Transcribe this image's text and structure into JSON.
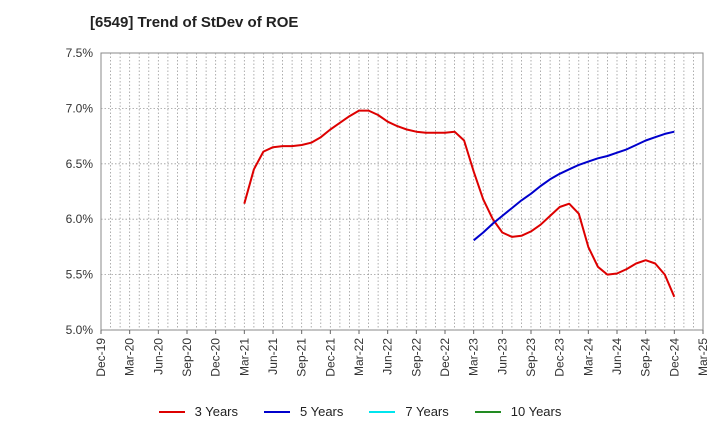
{
  "chart_data": {
    "type": "line",
    "title": "[6549]  Trend of StDev of ROE",
    "xlabel": "",
    "ylabel": "",
    "ylim": [
      5.0,
      7.5
    ],
    "yticks": [
      "5.0%",
      "5.5%",
      "6.0%",
      "6.5%",
      "7.0%",
      "7.5%"
    ],
    "categories": [
      "Dec-19",
      "Mar-20",
      "Jun-20",
      "Sep-20",
      "Dec-20",
      "Mar-21",
      "Jun-21",
      "Sep-21",
      "Dec-21",
      "Mar-22",
      "Jun-22",
      "Sep-22",
      "Dec-22",
      "Mar-23",
      "Jun-23",
      "Sep-23",
      "Dec-23",
      "Mar-24",
      "Jun-24",
      "Sep-24",
      "Dec-24",
      "Mar-25"
    ],
    "grid": true,
    "legend_position": "bottom",
    "series": [
      {
        "name": "3 Years",
        "color": "#dd0000",
        "points": [
          [
            "Mar-21",
            6.14
          ],
          [
            "Apr-21",
            6.45
          ],
          [
            "May-21",
            6.61
          ],
          [
            "Jun-21",
            6.65
          ],
          [
            "Jul-21",
            6.66
          ],
          [
            "Aug-21",
            6.66
          ],
          [
            "Sep-21",
            6.67
          ],
          [
            "Oct-21",
            6.69
          ],
          [
            "Nov-21",
            6.74
          ],
          [
            "Dec-21",
            6.81
          ],
          [
            "Jan-22",
            6.87
          ],
          [
            "Feb-22",
            6.93
          ],
          [
            "Mar-22",
            6.98
          ],
          [
            "Apr-22",
            6.98
          ],
          [
            "May-22",
            6.94
          ],
          [
            "Jun-22",
            6.88
          ],
          [
            "Jul-22",
            6.84
          ],
          [
            "Aug-22",
            6.81
          ],
          [
            "Sep-22",
            6.79
          ],
          [
            "Oct-22",
            6.78
          ],
          [
            "Nov-22",
            6.78
          ],
          [
            "Dec-22",
            6.78
          ],
          [
            "Jan-23",
            6.79
          ],
          [
            "Feb-23",
            6.71
          ],
          [
            "Mar-23",
            6.43
          ],
          [
            "Apr-23",
            6.18
          ],
          [
            "May-23",
            6.0
          ],
          [
            "Jun-23",
            5.88
          ],
          [
            "Jul-23",
            5.84
          ],
          [
            "Aug-23",
            5.85
          ],
          [
            "Sep-23",
            5.89
          ],
          [
            "Oct-23",
            5.95
          ],
          [
            "Nov-23",
            6.03
          ],
          [
            "Dec-23",
            6.11
          ],
          [
            "Jan-24",
            6.14
          ],
          [
            "Feb-24",
            6.05
          ],
          [
            "Mar-24",
            5.75
          ],
          [
            "Apr-24",
            5.57
          ],
          [
            "May-24",
            5.5
          ],
          [
            "Jun-24",
            5.51
          ],
          [
            "Jul-24",
            5.55
          ],
          [
            "Aug-24",
            5.6
          ],
          [
            "Sep-24",
            5.63
          ],
          [
            "Oct-24",
            5.6
          ],
          [
            "Nov-24",
            5.5
          ],
          [
            "Dec-24",
            5.3
          ]
        ]
      },
      {
        "name": "5 Years",
        "color": "#0000cc",
        "points": [
          [
            "Mar-23",
            5.81
          ],
          [
            "Apr-23",
            5.88
          ],
          [
            "May-23",
            5.96
          ],
          [
            "Jun-23",
            6.03
          ],
          [
            "Jul-23",
            6.1
          ],
          [
            "Aug-23",
            6.17
          ],
          [
            "Sep-23",
            6.23
          ],
          [
            "Oct-23",
            6.3
          ],
          [
            "Nov-23",
            6.36
          ],
          [
            "Dec-23",
            6.41
          ],
          [
            "Jan-24",
            6.45
          ],
          [
            "Feb-24",
            6.49
          ],
          [
            "Mar-24",
            6.52
          ],
          [
            "Apr-24",
            6.55
          ],
          [
            "May-24",
            6.57
          ],
          [
            "Jun-24",
            6.6
          ],
          [
            "Jul-24",
            6.63
          ],
          [
            "Aug-24",
            6.67
          ],
          [
            "Sep-24",
            6.71
          ],
          [
            "Oct-24",
            6.74
          ],
          [
            "Nov-24",
            6.77
          ],
          [
            "Dec-24",
            6.79
          ]
        ]
      },
      {
        "name": "7 Years",
        "color": "#00e5ee",
        "points": []
      },
      {
        "name": "10 Years",
        "color": "#228b22",
        "points": []
      }
    ]
  }
}
